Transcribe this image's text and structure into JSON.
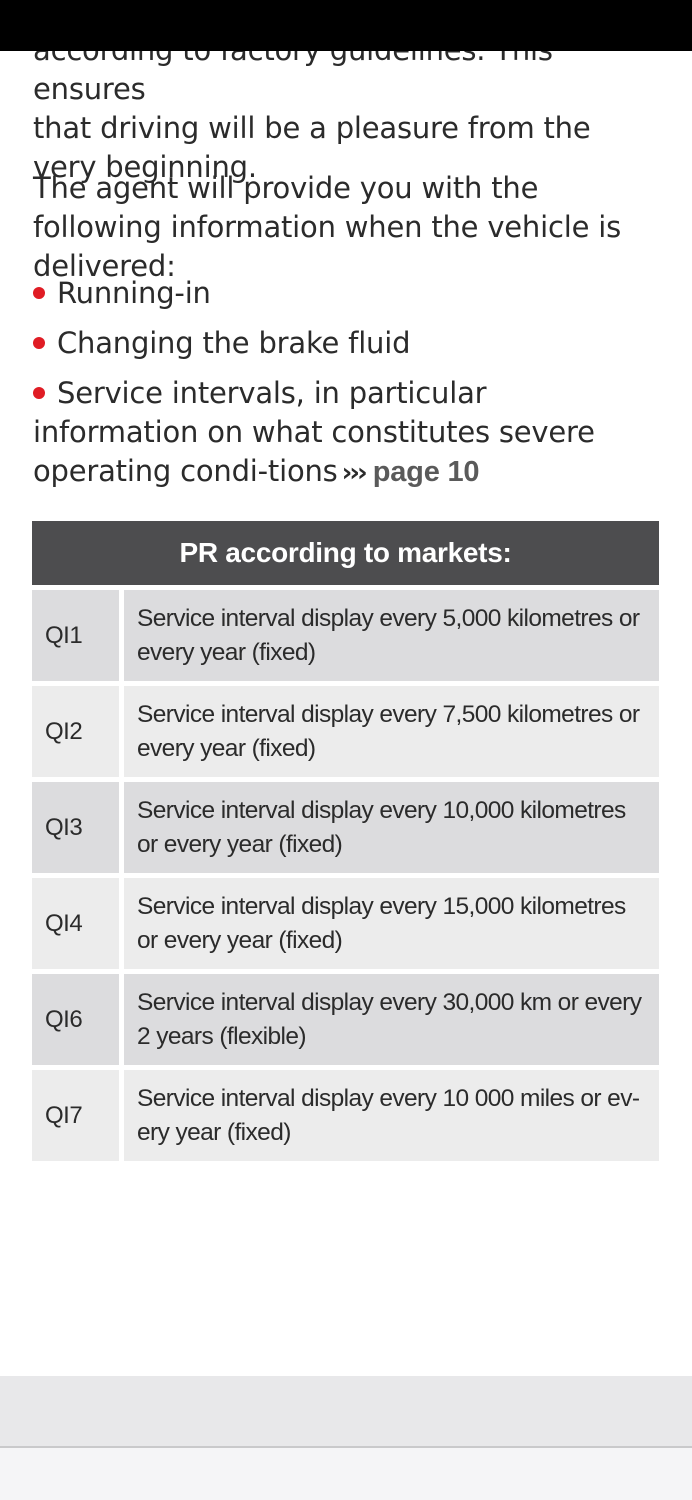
{
  "intro": {
    "partial_line": "according to factory guidelines. This ensures",
    "para1_rest": "that driving will be a pleasure from the very beginning.",
    "para2": "The agent will provide you with the following information when the vehicle is delivered:"
  },
  "bullets": [
    {
      "text": "Running-in"
    },
    {
      "text": "Changing the brake fluid"
    },
    {
      "text": "Service intervals, in particular information on what constitutes severe operating condi-tions",
      "xref_arrow": "›››",
      "xref_label": "page 10"
    }
  ],
  "table": {
    "header": "PR according to markets:",
    "rows": [
      {
        "code": "QI1",
        "description": "Service interval display every 5,000 kilometres or every year (fixed)"
      },
      {
        "code": "QI2",
        "description": "Service interval display every 7,500 kilometres or every year (fixed)"
      },
      {
        "code": "QI3",
        "description": "Service interval display every 10,000 kilometres or every year (fixed)"
      },
      {
        "code": "QI4",
        "description": "Service interval display every 15,000 kilometres or every year (fixed)"
      },
      {
        "code": "QI6",
        "description": "Service interval display every 30,000 km or every 2 years (flexible)"
      },
      {
        "code": "QI7",
        "description": "Service interval display every 10 000 miles or ev-ery year (fixed)"
      }
    ]
  },
  "colors": {
    "bullet": "#e01c24",
    "table_header_bg": "#4d4d4f",
    "row_odd_bg": "#dcdcde",
    "row_even_bg": "#ececec"
  }
}
